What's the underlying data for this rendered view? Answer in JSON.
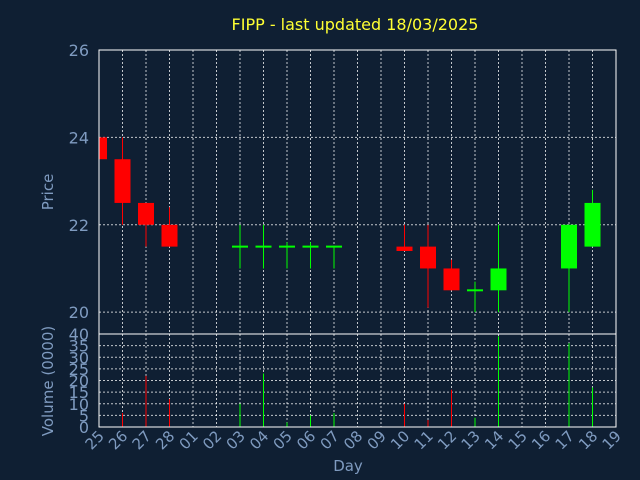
{
  "chart_data": {
    "type": "candlestick",
    "title": "FIPP - last updated 18/03/2025",
    "xlabel": "Day",
    "x": [
      "25",
      "26",
      "27",
      "28",
      "01",
      "02",
      "03",
      "04",
      "05",
      "06",
      "07",
      "08",
      "09",
      "10",
      "11",
      "12",
      "13",
      "14",
      "15",
      "16",
      "17",
      "18",
      "19"
    ],
    "price_panel": {
      "ylabel": "Price",
      "ylim": [
        19.5,
        26
      ],
      "yticks": [
        20,
        22,
        24,
        26
      ],
      "candles": [
        {
          "day": "25",
          "open": 24.0,
          "high": 24.0,
          "low": 23.5,
          "close": 23.5
        },
        {
          "day": "26",
          "open": 23.5,
          "high": 24.0,
          "low": 22.0,
          "close": 22.5
        },
        {
          "day": "27",
          "open": 22.5,
          "high": 22.5,
          "low": 21.5,
          "close": 22.0
        },
        {
          "day": "28",
          "open": 22.0,
          "high": 22.4,
          "low": 21.5,
          "close": 21.5
        },
        {
          "day": "03",
          "open": 21.5,
          "high": 22.0,
          "low": 21.0,
          "close": 21.5
        },
        {
          "day": "04",
          "open": 21.5,
          "high": 22.0,
          "low": 21.0,
          "close": 21.5
        },
        {
          "day": "05",
          "open": 21.5,
          "high": 21.6,
          "low": 21.0,
          "close": 21.5
        },
        {
          "day": "06",
          "open": 21.5,
          "high": 21.6,
          "low": 21.0,
          "close": 21.5
        },
        {
          "day": "07",
          "open": 21.5,
          "high": 21.5,
          "low": 21.0,
          "close": 21.5
        },
        {
          "day": "10",
          "open": 21.5,
          "high": 22.0,
          "low": 21.4,
          "close": 21.4
        },
        {
          "day": "11",
          "open": 21.5,
          "high": 22.0,
          "low": 20.1,
          "close": 21.0
        },
        {
          "day": "12",
          "open": 21.0,
          "high": 21.2,
          "low": 20.5,
          "close": 20.5
        },
        {
          "day": "13",
          "open": 20.5,
          "high": 20.7,
          "low": 20.0,
          "close": 20.5
        },
        {
          "day": "14",
          "open": 20.5,
          "high": 22.0,
          "low": 20.0,
          "close": 21.0
        },
        {
          "day": "17",
          "open": 21.0,
          "high": 22.0,
          "low": 20.0,
          "close": 22.0
        },
        {
          "day": "18",
          "open": 21.5,
          "high": 22.8,
          "low": 21.5,
          "close": 22.5
        }
      ]
    },
    "volume_panel": {
      "ylabel": "Volume (0000)",
      "ylim": [
        0,
        40
      ],
      "yticks": [
        0,
        5,
        10,
        15,
        20,
        25,
        30,
        35,
        40
      ],
      "bars": [
        {
          "day": "26",
          "value": 6,
          "dir": "down"
        },
        {
          "day": "27",
          "value": 22,
          "dir": "down"
        },
        {
          "day": "28",
          "value": 12,
          "dir": "down"
        },
        {
          "day": "03",
          "value": 10,
          "dir": "flat"
        },
        {
          "day": "04",
          "value": 23,
          "dir": "flat"
        },
        {
          "day": "05",
          "value": 2,
          "dir": "flat"
        },
        {
          "day": "06",
          "value": 5,
          "dir": "flat"
        },
        {
          "day": "07",
          "value": 6,
          "dir": "flat"
        },
        {
          "day": "10",
          "value": 10,
          "dir": "down"
        },
        {
          "day": "11",
          "value": 3,
          "dir": "down"
        },
        {
          "day": "12",
          "value": 16,
          "dir": "down"
        },
        {
          "day": "13",
          "value": 4,
          "dir": "flat"
        },
        {
          "day": "14",
          "value": 39,
          "dir": "up"
        },
        {
          "day": "17",
          "value": 36,
          "dir": "up"
        },
        {
          "day": "18",
          "value": 17,
          "dir": "up"
        }
      ]
    },
    "colors": {
      "background": "#0f1f33",
      "up": "#00ff00",
      "down": "#ff0000",
      "title": "#ffff33",
      "axis_text": "#7f9bc0",
      "grid": "#ffffff"
    },
    "grid": true
  }
}
